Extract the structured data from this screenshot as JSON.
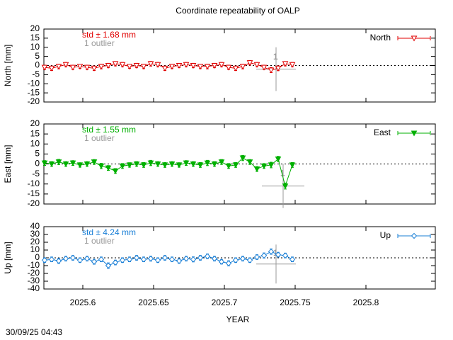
{
  "title": "Coordinate repeatability of OALP",
  "xlabel": "YEAR",
  "timestamp": "30/09/25 04:43",
  "chart_data": [
    {
      "type": "line",
      "ylabel": "North [mm]",
      "annotation": "std ± 1.68 mm",
      "outlier_note": "1 outlier",
      "ylim": [
        -20,
        20
      ],
      "yticks": [
        -20,
        -15,
        -10,
        -5,
        0,
        5,
        10,
        15,
        20
      ],
      "xlim": [
        2025.5725,
        2025.849
      ],
      "xticks": [
        2025.6,
        2025.65,
        2025.7,
        2025.75,
        2025.8
      ],
      "x": [
        2025.573,
        2025.578,
        2025.583,
        2025.588,
        2025.593,
        2025.598,
        2025.603,
        2025.608,
        2025.613,
        2025.618,
        2025.623,
        2025.628,
        2025.633,
        2025.638,
        2025.643,
        2025.648,
        2025.653,
        2025.658,
        2025.663,
        2025.668,
        2025.673,
        2025.678,
        2025.683,
        2025.688,
        2025.693,
        2025.698,
        2025.703,
        2025.708,
        2025.713,
        2025.718,
        2025.723,
        2025.728,
        2025.733,
        2025.738,
        2025.743,
        2025.748
      ],
      "series": [
        {
          "name": "North",
          "color": "#e00000",
          "marker": "triangle-down-open",
          "values": [
            -1,
            -1.5,
            -0.5,
            0.5,
            -1,
            -0.5,
            -1,
            -1.5,
            -0.5,
            0,
            1,
            0.5,
            -0.5,
            0,
            -0.5,
            1,
            0.5,
            -1.5,
            -0.5,
            0,
            0.5,
            0,
            -0.5,
            -0.5,
            0,
            0.5,
            -1,
            -1.5,
            -0.5,
            1.5,
            0.5,
            -1,
            -2.5,
            -1.5,
            1,
            0.5
          ],
          "errors": [
            1.2,
            1.2,
            1.3,
            1.2,
            1.2,
            1.1,
            1.2,
            1.2,
            1.3,
            1.2,
            1.2,
            1.2,
            1.1,
            1.2,
            1.2,
            1.3,
            1.2,
            1.2,
            1.2,
            1.1,
            1.2,
            1.2,
            1.2,
            1.3,
            1.2,
            1.2,
            1.2,
            1.2,
            1.3,
            1.2,
            1.2,
            1.2,
            1.4,
            1.3,
            1.2,
            1.2
          ]
        }
      ],
      "outlier": {
        "x": 2025.7365,
        "value": -2,
        "error": 12,
        "x_error": 0.014,
        "label": "1"
      }
    },
    {
      "type": "line",
      "ylabel": "East [mm]",
      "annotation": "std ± 1.55 mm",
      "outlier_note": "1 outlier",
      "ylim": [
        -20,
        20
      ],
      "yticks": [
        -20,
        -15,
        -10,
        -5,
        0,
        5,
        10,
        15,
        20
      ],
      "xlim": [
        2025.5725,
        2025.849
      ],
      "xticks": [
        2025.6,
        2025.65,
        2025.7,
        2025.75,
        2025.8
      ],
      "x": [
        2025.573,
        2025.578,
        2025.583,
        2025.588,
        2025.593,
        2025.598,
        2025.603,
        2025.608,
        2025.613,
        2025.618,
        2025.623,
        2025.628,
        2025.633,
        2025.638,
        2025.643,
        2025.648,
        2025.653,
        2025.658,
        2025.663,
        2025.668,
        2025.673,
        2025.678,
        2025.683,
        2025.688,
        2025.693,
        2025.698,
        2025.703,
        2025.708,
        2025.713,
        2025.718,
        2025.723,
        2025.728,
        2025.733,
        2025.738,
        2025.743,
        2025.748
      ],
      "series": [
        {
          "name": "East",
          "color": "#00b000",
          "marker": "triangle-down-filled",
          "values": [
            0.5,
            0,
            1,
            0,
            0.5,
            -0.5,
            0,
            1,
            -1,
            -2,
            -3.5,
            -1,
            -0.5,
            0,
            -0.5,
            0.5,
            0,
            -0.5,
            0,
            -0.5,
            0.5,
            0,
            -0.5,
            0.5,
            0,
            1,
            -1,
            -0.5,
            3,
            1,
            -2.5,
            -1,
            -0.5,
            2.5,
            -11,
            -0.5
          ],
          "errors": [
            1.2,
            1.2,
            1.3,
            1.2,
            1.2,
            1.1,
            1.2,
            1.2,
            1.3,
            1.2,
            1.2,
            1.2,
            1.1,
            1.2,
            1.2,
            1.3,
            1.2,
            1.2,
            1.2,
            1.1,
            1.2,
            1.2,
            1.2,
            1.3,
            1.2,
            1.2,
            1.2,
            1.2,
            1.3,
            1.2,
            1.2,
            1.2,
            1.4,
            1.3,
            1.5,
            1.2
          ]
        }
      ],
      "outlier": {
        "x": 2025.7415,
        "value": -11,
        "error": 11,
        "x_error": 0.015,
        "label": "1"
      }
    },
    {
      "type": "line",
      "ylabel": "Up [mm]",
      "annotation": "std ± 4.24 mm",
      "outlier_note": "1 outlier",
      "ylim": [
        -40,
        40
      ],
      "yticks": [
        -40,
        -30,
        -20,
        -10,
        0,
        10,
        20,
        30,
        40
      ],
      "xlim": [
        2025.5725,
        2025.849
      ],
      "xticks": [
        2025.6,
        2025.65,
        2025.7,
        2025.75,
        2025.8
      ],
      "x": [
        2025.573,
        2025.578,
        2025.583,
        2025.588,
        2025.593,
        2025.598,
        2025.603,
        2025.608,
        2025.613,
        2025.618,
        2025.623,
        2025.628,
        2025.633,
        2025.638,
        2025.643,
        2025.648,
        2025.653,
        2025.658,
        2025.663,
        2025.668,
        2025.673,
        2025.678,
        2025.683,
        2025.688,
        2025.693,
        2025.698,
        2025.703,
        2025.708,
        2025.713,
        2025.718,
        2025.723,
        2025.728,
        2025.733,
        2025.738,
        2025.743,
        2025.748
      ],
      "series": [
        {
          "name": "Up",
          "color": "#1a7fd6",
          "marker": "diamond-open",
          "values": [
            -3,
            -2,
            -4,
            -1,
            0,
            -3,
            -1,
            -5,
            -2,
            -10,
            -6,
            -3,
            -2,
            0,
            -2,
            -1,
            -3,
            0,
            -2,
            -4,
            -1,
            -2,
            0,
            2,
            -1,
            -5,
            -7,
            -3,
            -1,
            -3,
            1,
            3,
            8,
            4,
            3,
            -2
          ],
          "errors": [
            3,
            3,
            3.2,
            3,
            3,
            3,
            3,
            3.2,
            3,
            3.5,
            3,
            3,
            3,
            3,
            3,
            3.2,
            3,
            3,
            3,
            3,
            3,
            3.2,
            3,
            3,
            3,
            3,
            3.2,
            3,
            3,
            3,
            3,
            3.2,
            3.5,
            3,
            3,
            3
          ]
        }
      ],
      "outlier": {
        "x": 2025.7365,
        "value": -8,
        "error": 25,
        "x_error": 0.014,
        "label": "1"
      }
    }
  ]
}
